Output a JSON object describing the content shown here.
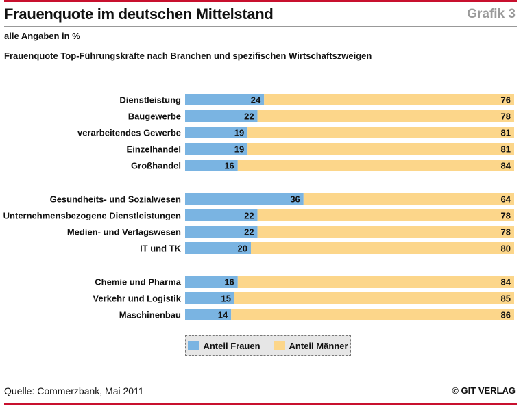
{
  "header": {
    "title": "Frauenquote im deutschen Mittelstand",
    "grafik_label": "Grafik 3",
    "subtitle": "alle Angaben in %",
    "section_title": "Frauenquote Top-Führungskräfte nach Branchen und spezifischen Wirtschaftszweigen"
  },
  "chart_data": {
    "type": "bar",
    "orientation": "horizontal",
    "stacked": true,
    "title": "Frauenquote Top-Führungskräfte nach Branchen und spezifischen Wirtschaftszweigen",
    "xlim": [
      0,
      100
    ],
    "categories": [
      "Dienstleistung",
      "Baugewerbe",
      "verarbeitendes Gewerbe",
      "Einzelhandel",
      "Großhandel",
      "Gesundheits- und Sozialwesen",
      "Unternehmensbezogene Dienstleistungen",
      "Medien- und Verlagswesen",
      "IT und TK",
      "Chemie und Pharma",
      "Verkehr und Logistik",
      "Maschinenbau"
    ],
    "groups": [
      5,
      4,
      3
    ],
    "series": [
      {
        "name": "Anteil Frauen",
        "color": "#7ab4e2",
        "values": [
          24,
          22,
          19,
          19,
          16,
          36,
          22,
          22,
          20,
          16,
          15,
          14
        ]
      },
      {
        "name": "Anteil Männer",
        "color": "#fcd68a",
        "values": [
          76,
          78,
          81,
          81,
          84,
          64,
          78,
          78,
          80,
          84,
          85,
          86
        ]
      }
    ]
  },
  "legend": {
    "items": [
      {
        "label": "Anteil Frauen",
        "color": "#7ab4e2"
      },
      {
        "label": "Anteil Männer",
        "color": "#fcd68a"
      }
    ]
  },
  "footer": {
    "source": "Quelle: Commerzbank, Mai 2011",
    "publisher": "© GIT VERLAG"
  }
}
